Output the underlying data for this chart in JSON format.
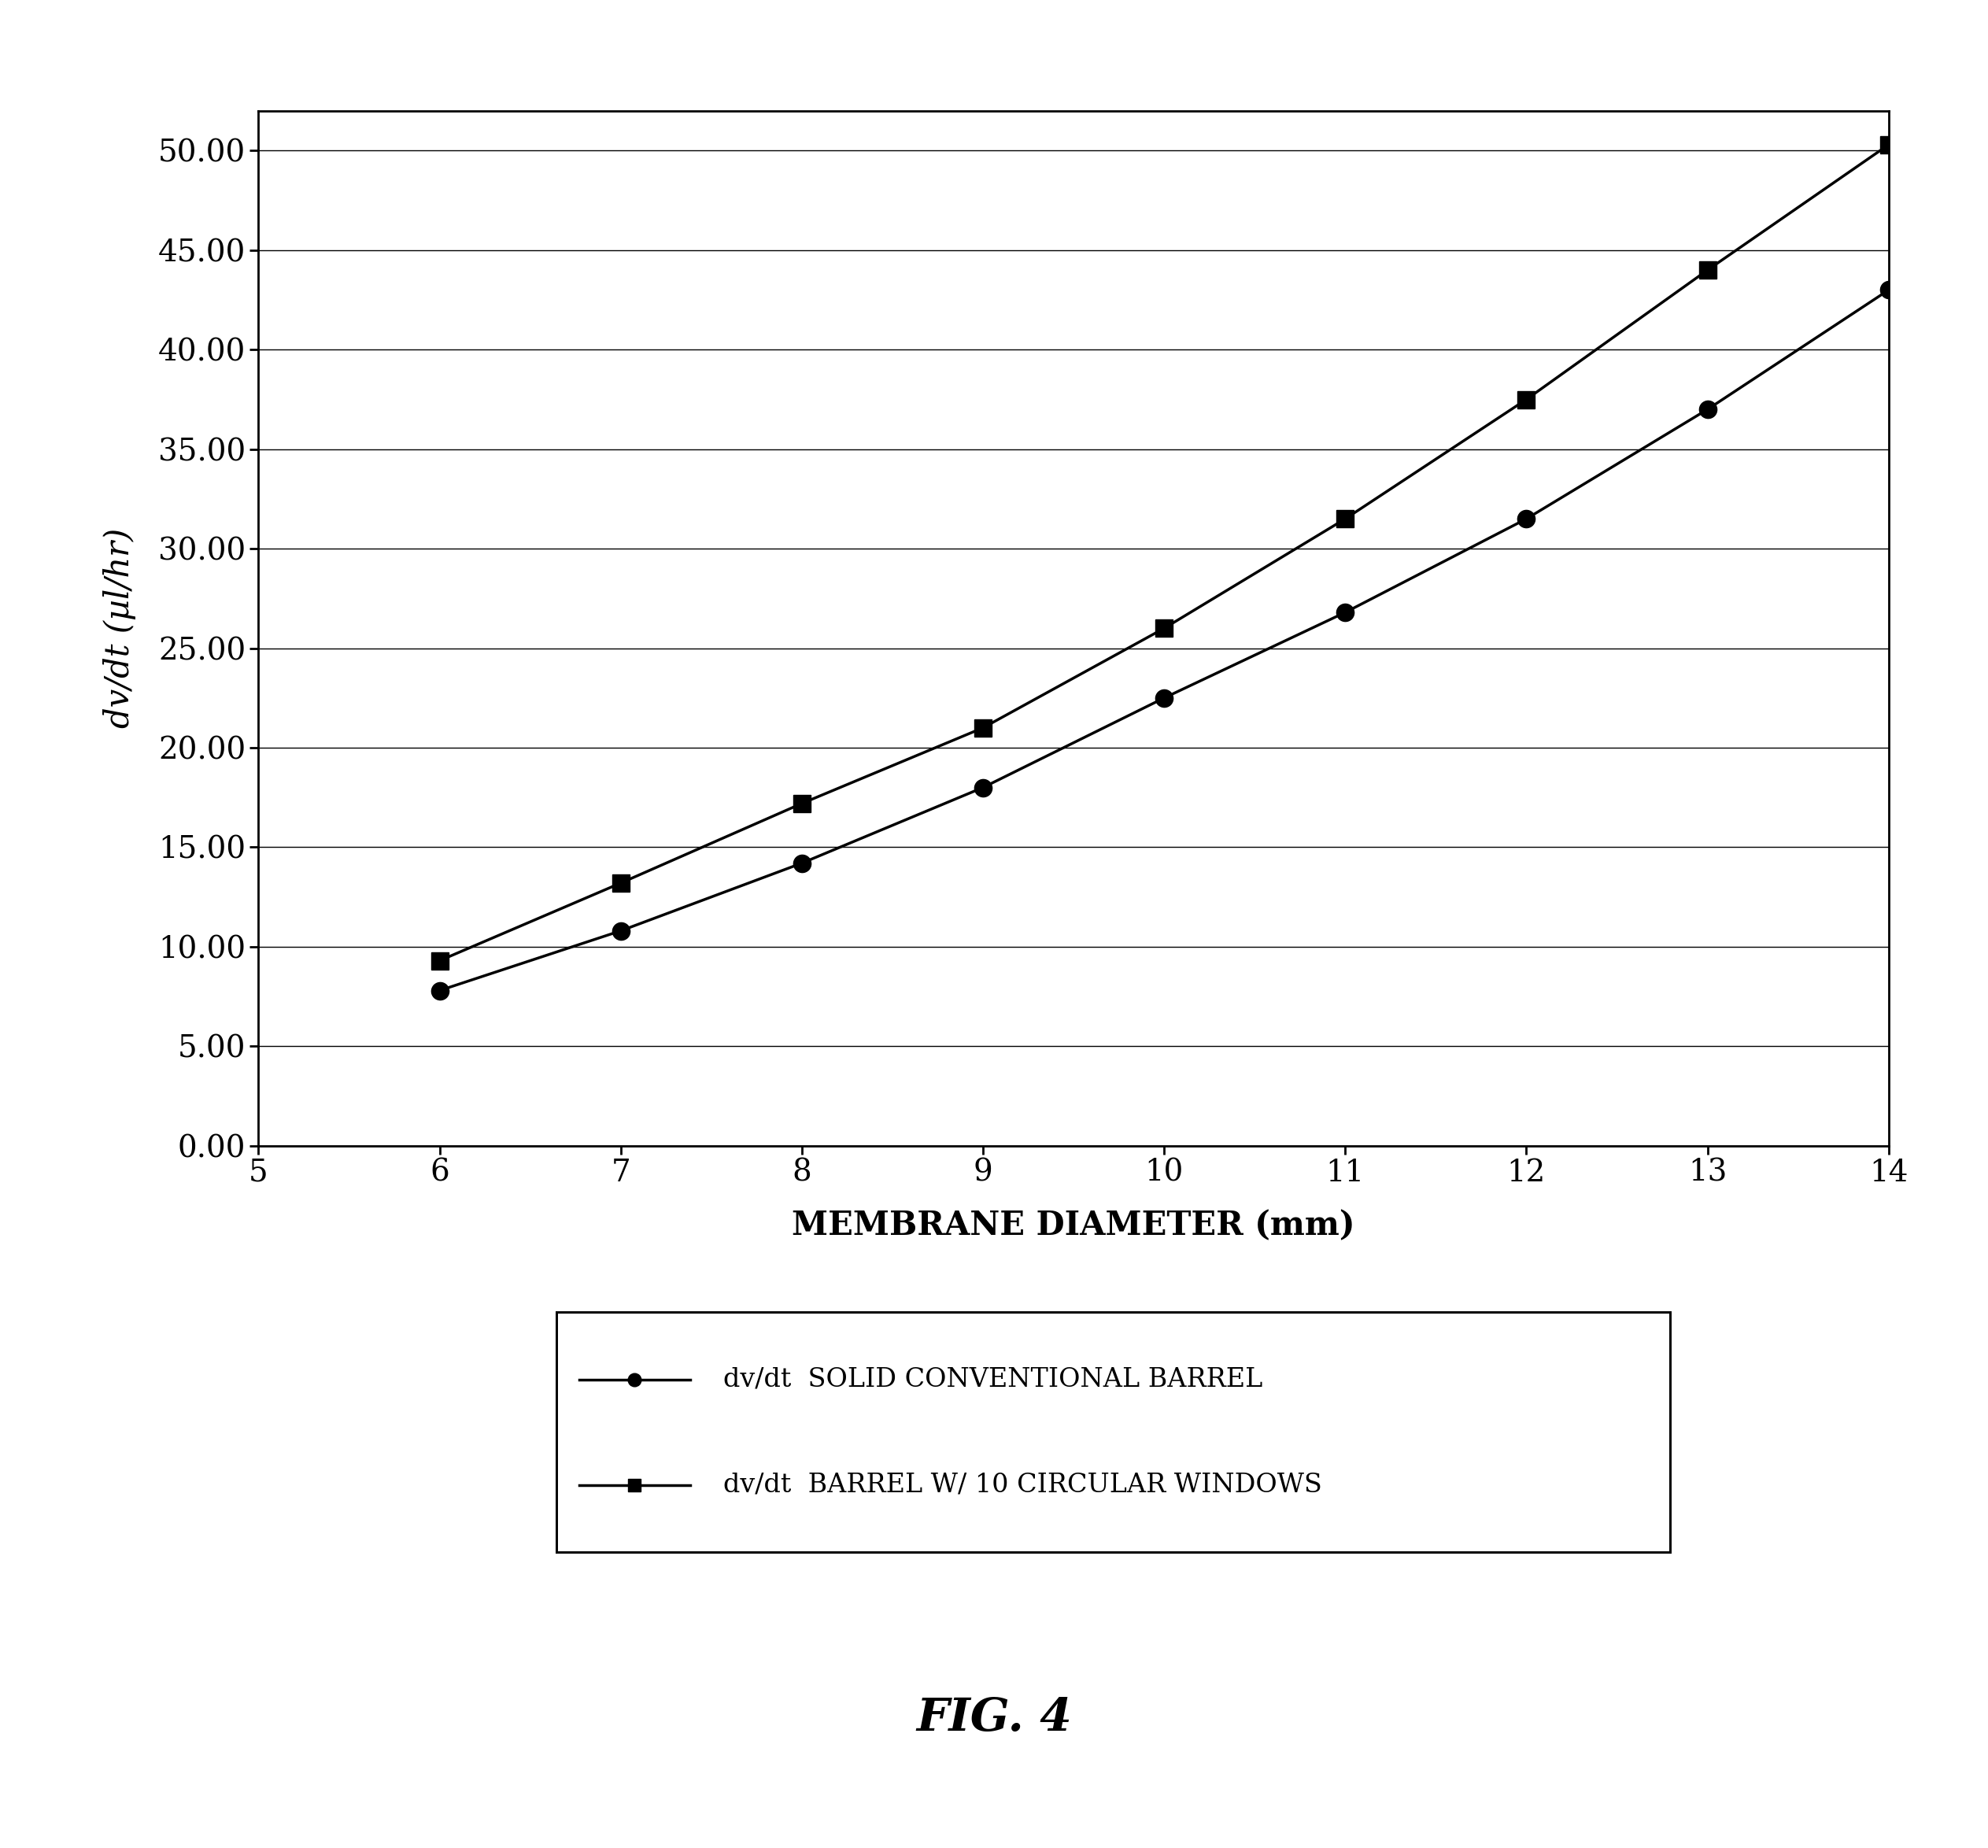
{
  "x": [
    6,
    7,
    8,
    9,
    10,
    11,
    12,
    13,
    14
  ],
  "series1_y": [
    7.8,
    10.8,
    14.2,
    18.0,
    22.5,
    26.8,
    31.5,
    37.0,
    43.0
  ],
  "series2_y": [
    9.3,
    13.2,
    17.2,
    21.0,
    26.0,
    31.5,
    37.5,
    44.0,
    50.3
  ],
  "series1_label": "—●—dv/dt  SOLID CONVENTIONAL BARREL",
  "series2_label": "—■—dv/dt  BARREL W/ 10 CIRCULAR WINDOWS",
  "xlabel": "MEMBRANE DIAMETER (mm)",
  "ylabel": "dv/dt (µl/hr)",
  "fig_label": "FIG. 4",
  "xlim": [
    5,
    14
  ],
  "ylim": [
    0.0,
    52.0
  ],
  "yticks": [
    0.0,
    5.0,
    10.0,
    15.0,
    20.0,
    25.0,
    30.0,
    35.0,
    40.0,
    45.0,
    50.0
  ],
  "xticks": [
    5,
    6,
    7,
    8,
    9,
    10,
    11,
    12,
    13,
    14
  ],
  "line_color": "#000000",
  "bg_color": "#ffffff",
  "marker1": "o",
  "marker2": "s"
}
